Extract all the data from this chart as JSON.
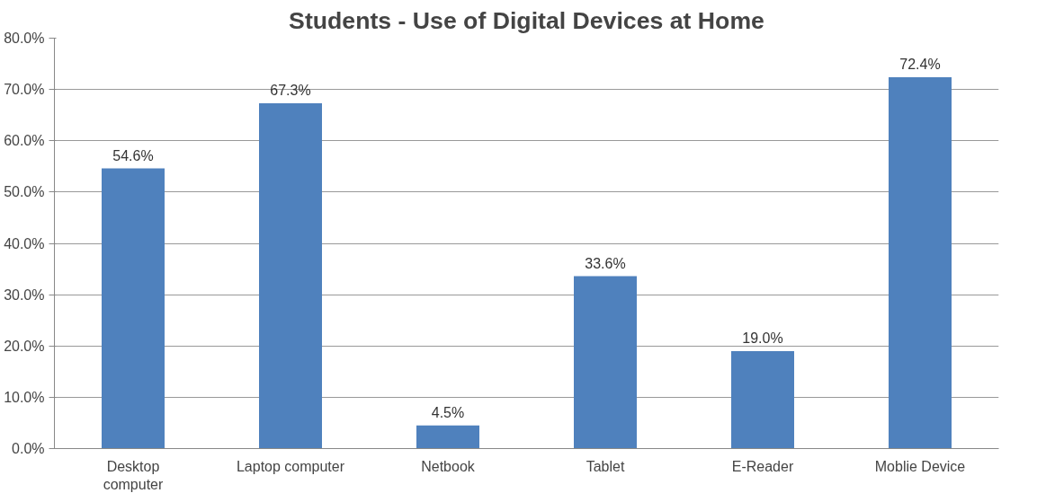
{
  "chart_data": {
    "type": "bar",
    "title": "Students - Use of Digital Devices at Home",
    "categories": [
      "Desktop computer",
      "Laptop computer",
      "Netbook",
      "Tablet",
      "E-Reader",
      "Moblie Device"
    ],
    "values": [
      54.6,
      67.3,
      4.5,
      33.6,
      19.0,
      72.4
    ],
    "value_labels": [
      "54.6%",
      "67.3%",
      "4.5%",
      "33.6%",
      "19.0%",
      "72.4%"
    ],
    "color": "#4f81bd",
    "ylim": [
      0,
      80
    ],
    "yticks": [
      {
        "value": 0,
        "label": "0.0%"
      },
      {
        "value": 10,
        "label": "10.0%"
      },
      {
        "value": 20,
        "label": "20.0%"
      },
      {
        "value": 30,
        "label": "30.0%"
      },
      {
        "value": 40,
        "label": "40.0%"
      },
      {
        "value": 50,
        "label": "50.0%"
      },
      {
        "value": 60,
        "label": "60.0%"
      },
      {
        "value": 70,
        "label": "70.0%"
      },
      {
        "value": 80,
        "label": "80.0%"
      }
    ],
    "grid": "y"
  }
}
